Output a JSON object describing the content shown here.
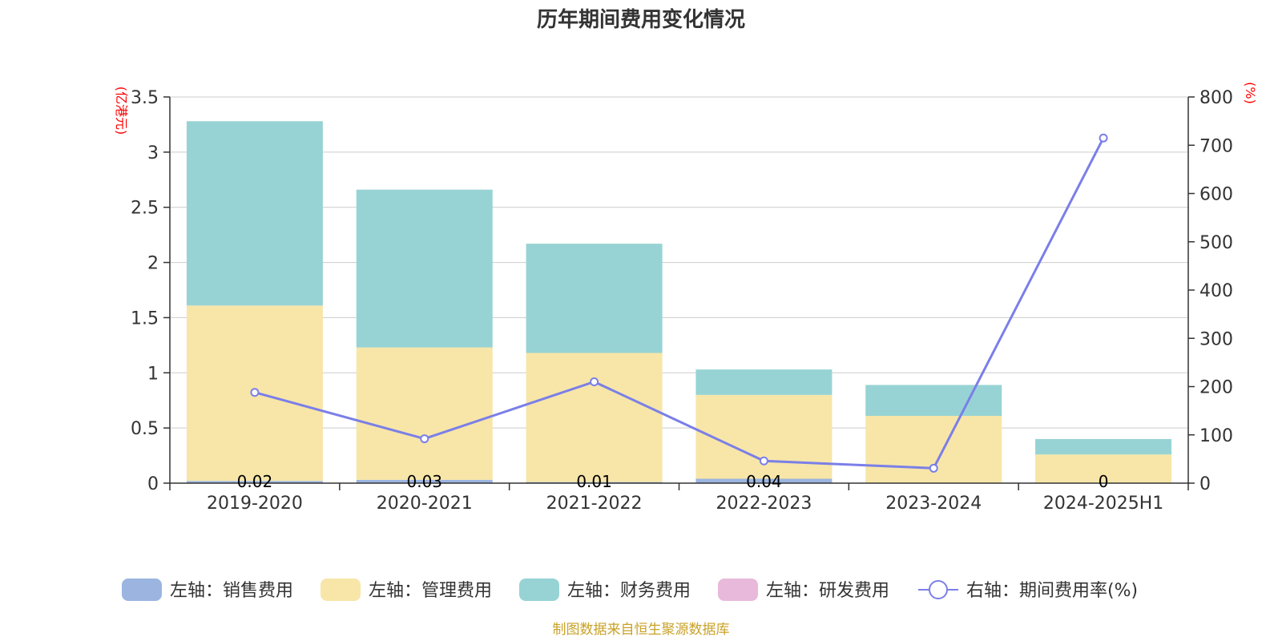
{
  "chart_data": {
    "type": "bar",
    "stacked": true,
    "title": "历年期间费用变化情况",
    "left_axis_unit": "(亿港元)",
    "right_axis_unit": "(%)",
    "categories": [
      "2019-2020",
      "2020-2021",
      "2021-2022",
      "2022-2023",
      "2023-2024",
      "2024-2025H1"
    ],
    "left_ylim": [
      0,
      3.5
    ],
    "left_ticks": [
      "0",
      "0.5",
      "1",
      "1.5",
      "2",
      "2.5",
      "3",
      "3.5"
    ],
    "right_ylim": [
      0,
      800
    ],
    "right_ticks": [
      "0",
      "100",
      "200",
      "300",
      "400",
      "500",
      "600",
      "700",
      "800"
    ],
    "grid": true,
    "legend_position": "bottom",
    "series": [
      {
        "name": "左轴：销售费用",
        "axis": "left",
        "kind": "bar",
        "color": "#9bb5e0",
        "values": [
          0.02,
          0.03,
          0.01,
          0.04,
          0,
          0
        ],
        "labels": [
          "0.02",
          "0.03",
          "0.01",
          "0.04",
          "",
          "0"
        ]
      },
      {
        "name": "左轴：管理费用",
        "axis": "left",
        "kind": "bar",
        "color": "#f7e6a8",
        "values": [
          1.59,
          1.2,
          1.17,
          0.76,
          0.61,
          0.26
        ]
      },
      {
        "name": "左轴：财务费用",
        "axis": "left",
        "kind": "bar",
        "color": "#97d3d4",
        "values": [
          1.67,
          1.43,
          0.99,
          0.23,
          0.28,
          0.14
        ]
      },
      {
        "name": "左轴：研发费用",
        "axis": "left",
        "kind": "bar",
        "color": "#e8b9da",
        "values": [
          0,
          0,
          0,
          0,
          0,
          0
        ]
      },
      {
        "name": "右轴：期间费用率(%)",
        "axis": "right",
        "kind": "line",
        "color": "#7b7fe8",
        "values": [
          188,
          92,
          210,
          46,
          31,
          715
        ]
      }
    ]
  },
  "source": "制图数据来自恒生聚源数据库"
}
